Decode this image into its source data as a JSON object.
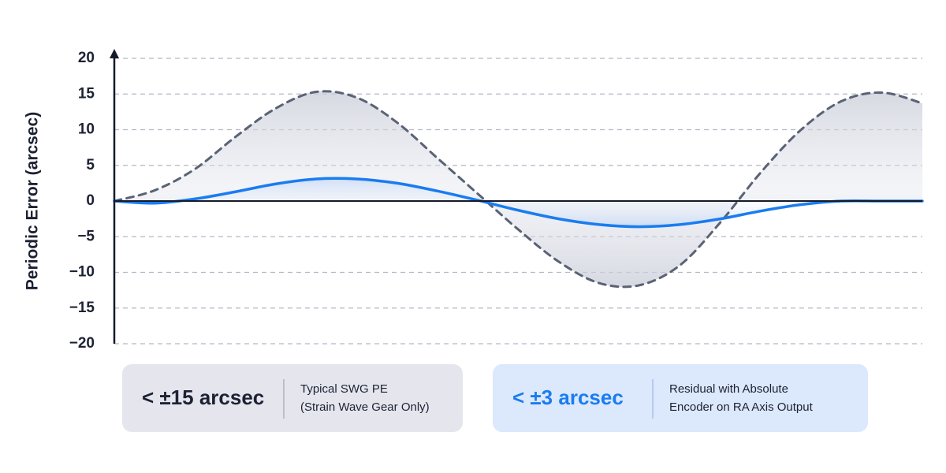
{
  "chart_data": {
    "type": "line",
    "y_label": "Periodic Error (arcsec)",
    "ylim": [
      -20,
      20
    ],
    "yticks": [
      {
        "value": -20,
        "label": "−20"
      },
      {
        "value": -15,
        "label": "−15"
      },
      {
        "value": -10,
        "label": "−10"
      },
      {
        "value": -5,
        "label": "−5"
      },
      0,
      5,
      10,
      15,
      20
    ],
    "grid": true,
    "series": [
      {
        "name": "< ±15 arcsec",
        "description": [
          "Typical SWG PE",
          "(Strain Wave Gear Only)"
        ],
        "color": "#5a6275",
        "line_style": "dashed",
        "values": [
          0,
          1.5,
          4.5,
          9,
          13,
          15.3,
          14.5,
          11,
          6,
          1,
          -4,
          -8.5,
          -11.5,
          -11.8,
          -9,
          -3,
          4,
          10,
          14,
          15.2,
          13.7
        ]
      },
      {
        "name": "< ±3 arcsec",
        "description": [
          "Residual with Absolute",
          "Encoder on RA Axis Output"
        ],
        "color": "#1a7cf0",
        "line_style": "solid",
        "values": [
          0,
          -0.3,
          0.3,
          1.3,
          2.4,
          3.1,
          3.1,
          2.5,
          1.4,
          0.1,
          -1.3,
          -2.5,
          -3.3,
          -3.6,
          -3.3,
          -2.5,
          -1.4,
          -0.5,
          0,
          0,
          0
        ]
      }
    ]
  }
}
